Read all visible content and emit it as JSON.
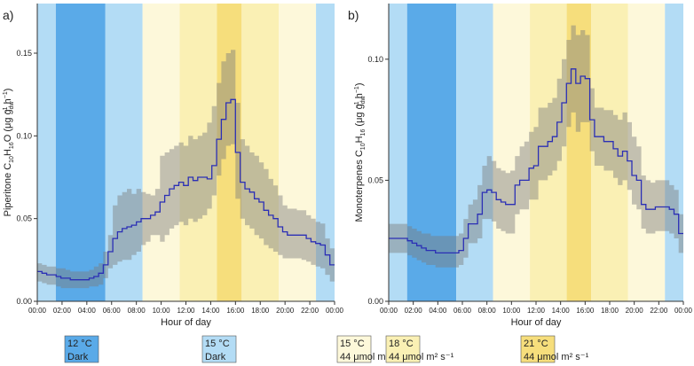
{
  "x_ticks": [
    "00:00",
    "02:00",
    "04:00",
    "06:00",
    "08:00",
    "10:00",
    "12:00",
    "14:00",
    "16:00",
    "18:00",
    "20:00",
    "22:00",
    "00:00"
  ],
  "bands": [
    {
      "start": 0,
      "end": 1.5,
      "color": "#b3dcf5"
    },
    {
      "start": 1.5,
      "end": 5.5,
      "color": "#5aaae8"
    },
    {
      "start": 5.5,
      "end": 8.5,
      "color": "#b3dcf5"
    },
    {
      "start": 8.5,
      "end": 11.5,
      "color": "#fdf8da"
    },
    {
      "start": 11.5,
      "end": 14.5,
      "color": "#faf0b4"
    },
    {
      "start": 14.5,
      "end": 16.5,
      "color": "#f6de7c"
    },
    {
      "start": 16.5,
      "end": 19.5,
      "color": "#faf0b4"
    },
    {
      "start": 19.5,
      "end": 22.5,
      "color": "#fdf8da"
    },
    {
      "start": 22.5,
      "end": 24,
      "color": "#b3dcf5"
    }
  ],
  "chart_data": [
    {
      "type": "area",
      "panel_label": "a)",
      "xlabel": "Hour of day",
      "ylabel_parts": [
        "Piperitone  C",
        "10",
        "H",
        "16",
        "O  (μg g",
        "dw",
        "−1",
        " h",
        "−1",
        ")"
      ],
      "xlim": [
        0,
        24
      ],
      "ylim": [
        0,
        0.18
      ],
      "y_ticks": [
        0.0,
        0.05,
        0.1,
        0.15
      ],
      "y_tick_labels": [
        "0.00",
        "0.05",
        "0.10",
        "0.15"
      ],
      "mean": [
        0.018,
        0.017,
        0.016,
        0.016,
        0.015,
        0.014,
        0.014,
        0.013,
        0.013,
        0.013,
        0.013,
        0.014,
        0.015,
        0.017,
        0.022,
        0.03,
        0.038,
        0.042,
        0.044,
        0.045,
        0.046,
        0.048,
        0.05,
        0.05,
        0.052,
        0.054,
        0.06,
        0.064,
        0.068,
        0.07,
        0.072,
        0.07,
        0.075,
        0.073,
        0.075,
        0.075,
        0.074,
        0.082,
        0.098,
        0.11,
        0.12,
        0.122,
        0.09,
        0.072,
        0.068,
        0.066,
        0.062,
        0.06,
        0.055,
        0.052,
        0.05,
        0.045,
        0.042,
        0.04,
        0.04,
        0.04,
        0.04,
        0.038,
        0.036,
        0.035,
        0.034,
        0.028,
        0.022
      ],
      "upper": [
        0.023,
        0.022,
        0.021,
        0.021,
        0.02,
        0.02,
        0.019,
        0.018,
        0.018,
        0.018,
        0.018,
        0.019,
        0.021,
        0.023,
        0.03,
        0.04,
        0.058,
        0.064,
        0.066,
        0.068,
        0.065,
        0.068,
        0.066,
        0.065,
        0.064,
        0.068,
        0.088,
        0.09,
        0.092,
        0.094,
        0.096,
        0.094,
        0.1,
        0.098,
        0.1,
        0.102,
        0.108,
        0.118,
        0.132,
        0.145,
        0.15,
        0.152,
        0.12,
        0.098,
        0.094,
        0.09,
        0.088,
        0.084,
        0.08,
        0.074,
        0.07,
        0.064,
        0.058,
        0.056,
        0.056,
        0.055,
        0.055,
        0.052,
        0.05,
        0.048,
        0.047,
        0.038,
        0.032
      ],
      "lower": [
        0.012,
        0.011,
        0.01,
        0.01,
        0.009,
        0.008,
        0.008,
        0.008,
        0.008,
        0.008,
        0.008,
        0.009,
        0.009,
        0.01,
        0.014,
        0.02,
        0.022,
        0.024,
        0.025,
        0.025,
        0.028,
        0.03,
        0.034,
        0.036,
        0.04,
        0.04,
        0.036,
        0.04,
        0.044,
        0.046,
        0.048,
        0.046,
        0.05,
        0.048,
        0.05,
        0.052,
        0.056,
        0.064,
        0.076,
        0.086,
        0.094,
        0.095,
        0.062,
        0.05,
        0.046,
        0.044,
        0.04,
        0.038,
        0.034,
        0.032,
        0.03,
        0.028,
        0.026,
        0.026,
        0.026,
        0.026,
        0.025,
        0.024,
        0.022,
        0.021,
        0.02,
        0.016,
        0.012
      ]
    },
    {
      "type": "area",
      "panel_label": "b)",
      "xlabel": "Hour of day",
      "ylabel_parts": [
        "Monoterpenes  C",
        "10",
        "H",
        "16",
        "  (μg g",
        "dw",
        "−1",
        " h",
        "−1",
        ")"
      ],
      "xlim": [
        0,
        24
      ],
      "ylim": [
        0,
        0.123
      ],
      "y_ticks": [
        0.0,
        0.05,
        0.1
      ],
      "y_tick_labels": [
        "0.00",
        "0.05",
        "0.10"
      ],
      "mean": [
        0.026,
        0.026,
        0.026,
        0.026,
        0.025,
        0.024,
        0.023,
        0.022,
        0.021,
        0.021,
        0.02,
        0.02,
        0.02,
        0.02,
        0.02,
        0.021,
        0.026,
        0.032,
        0.032,
        0.036,
        0.045,
        0.046,
        0.045,
        0.042,
        0.041,
        0.04,
        0.04,
        0.048,
        0.05,
        0.05,
        0.055,
        0.056,
        0.064,
        0.064,
        0.066,
        0.068,
        0.074,
        0.082,
        0.09,
        0.096,
        0.09,
        0.093,
        0.092,
        0.075,
        0.068,
        0.068,
        0.066,
        0.066,
        0.063,
        0.06,
        0.062,
        0.058,
        0.052,
        0.05,
        0.04,
        0.038,
        0.038,
        0.039,
        0.039,
        0.039,
        0.038,
        0.036,
        0.028
      ],
      "upper": [
        0.032,
        0.032,
        0.032,
        0.032,
        0.031,
        0.03,
        0.029,
        0.028,
        0.028,
        0.027,
        0.027,
        0.027,
        0.027,
        0.027,
        0.027,
        0.028,
        0.034,
        0.04,
        0.042,
        0.048,
        0.056,
        0.06,
        0.058,
        0.055,
        0.054,
        0.053,
        0.054,
        0.06,
        0.064,
        0.066,
        0.07,
        0.072,
        0.08,
        0.08,
        0.082,
        0.084,
        0.092,
        0.1,
        0.108,
        0.114,
        0.11,
        0.112,
        0.11,
        0.088,
        0.08,
        0.08,
        0.079,
        0.079,
        0.077,
        0.075,
        0.078,
        0.074,
        0.068,
        0.064,
        0.052,
        0.05,
        0.049,
        0.05,
        0.05,
        0.05,
        0.048,
        0.046,
        0.036
      ],
      "lower": [
        0.02,
        0.02,
        0.02,
        0.02,
        0.019,
        0.018,
        0.017,
        0.016,
        0.015,
        0.015,
        0.014,
        0.014,
        0.014,
        0.014,
        0.014,
        0.015,
        0.018,
        0.024,
        0.024,
        0.026,
        0.034,
        0.034,
        0.033,
        0.03,
        0.029,
        0.028,
        0.028,
        0.036,
        0.038,
        0.038,
        0.042,
        0.042,
        0.05,
        0.05,
        0.052,
        0.054,
        0.058,
        0.064,
        0.072,
        0.078,
        0.07,
        0.074,
        0.074,
        0.062,
        0.056,
        0.056,
        0.054,
        0.054,
        0.051,
        0.048,
        0.05,
        0.046,
        0.04,
        0.038,
        0.03,
        0.028,
        0.028,
        0.029,
        0.029,
        0.029,
        0.028,
        0.026,
        0.02
      ]
    }
  ],
  "legend": [
    {
      "color": "#5aaae8",
      "temp": "12 °C",
      "light": "Dark"
    },
    {
      "color": "#b3dcf5",
      "temp": "15 °C",
      "light": "Dark"
    },
    {
      "color": "#fdf8da",
      "temp": "15 °C",
      "light": "44 μmol m² s⁻¹"
    },
    {
      "color": "#faf0b4",
      "temp": "18 °C",
      "light": "44 μmol m² s⁻¹"
    },
    {
      "color": "#f6de7c",
      "temp": "21 °C",
      "light": "44 μmol m² s⁻¹"
    }
  ]
}
